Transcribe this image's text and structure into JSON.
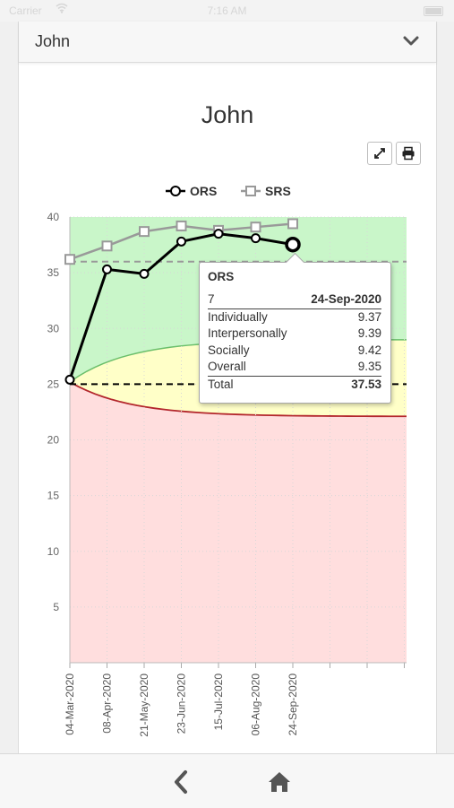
{
  "status_bar": {
    "carrier": "Carrier",
    "time": "7:16 AM"
  },
  "header": {
    "client_name": "John",
    "expand_icon": "chevron-down-icon"
  },
  "chart_toolbar": {
    "fullscreen_icon": "fullscreen-icon",
    "print_icon": "print-icon"
  },
  "chart_data": {
    "type": "line",
    "title": "John",
    "x": [
      "04-Mar-2020",
      "08-Apr-2020",
      "21-May-2020",
      "23-Jun-2020",
      "15-Jul-2020",
      "06-Aug-2020",
      "24-Sep-2020"
    ],
    "ylim": [
      0,
      40
    ],
    "yticks": [
      5,
      10,
      15,
      20,
      25,
      30,
      35,
      40
    ],
    "grid": true,
    "legend_position": "top-center",
    "series": [
      {
        "name": "ORS",
        "values": [
          25.4,
          35.3,
          34.9,
          37.8,
          38.5,
          38.1,
          37.53
        ],
        "color": "#000000"
      },
      {
        "name": "SRS",
        "values": [
          36.2,
          37.4,
          38.7,
          39.2,
          38.8,
          39.1,
          39.4
        ],
        "color": "#999999"
      }
    ],
    "reference_lines": [
      {
        "value": 36,
        "color": "#999999",
        "style": "dashed"
      },
      {
        "value": 25,
        "color": "#000000",
        "style": "dashed"
      }
    ],
    "zones": [
      {
        "color": "#c9f6c9"
      },
      {
        "color": "#ffffc8"
      },
      {
        "color": "#ffdede"
      }
    ]
  },
  "tooltip": {
    "title": "ORS",
    "session": "7",
    "date": "24-Sep-2020",
    "rows": [
      {
        "label": "Individually",
        "value": "9.37"
      },
      {
        "label": "Interpersonally",
        "value": "9.39"
      },
      {
        "label": "Socially",
        "value": "9.42"
      },
      {
        "label": "Overall",
        "value": "9.35"
      }
    ],
    "total_label": "Total",
    "total_value": "37.53"
  },
  "bottom_nav": {
    "back_icon": "back-icon",
    "home_icon": "home-icon"
  }
}
